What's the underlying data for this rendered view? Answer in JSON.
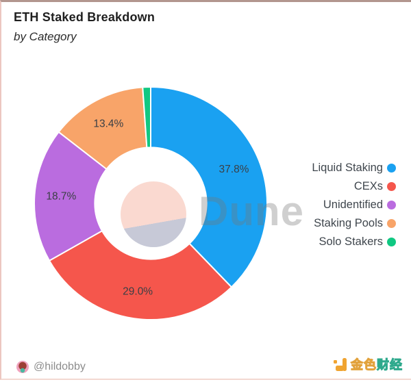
{
  "chart_data": {
    "type": "pie",
    "variant": "donut",
    "title": "ETH Staked Breakdown",
    "subtitle": "by Category",
    "unit": "%",
    "clockwise": true,
    "start_angle_deg": 0,
    "inner_radius_ratio": 0.48,
    "legend_position": "right",
    "series": [
      {
        "name": "Liquid Staking",
        "value": 37.8,
        "label": "37.8%",
        "color": "#1AA1F1"
      },
      {
        "name": "CEXs",
        "value": 29.0,
        "label": "29.0%",
        "color": "#F5564C"
      },
      {
        "name": "Unidentified",
        "value": 18.7,
        "label": "18.7%",
        "color": "#BA6CDF"
      },
      {
        "name": "Staking Pools",
        "value": 13.4,
        "label": "13.4%",
        "color": "#F8A469"
      },
      {
        "name": "Solo Stakers",
        "value": 1.1,
        "label": "",
        "color": "#10C882"
      }
    ]
  },
  "watermark": {
    "text": "Dune",
    "logo_icon": "dune-logo-circle",
    "logo_top_color": "#fad9d0",
    "logo_bottom_color": "#c7c9d7"
  },
  "footer": {
    "author": "@hildobby",
    "avatar_icon": "hildobby-avatar",
    "brand": {
      "icon": "jinse-finance-icon",
      "icon_color": "#f0a431",
      "gold_text": "金色",
      "teal_text": "财经",
      "gold_color": "#e2a23c",
      "teal_color": "#2ea98c"
    }
  }
}
